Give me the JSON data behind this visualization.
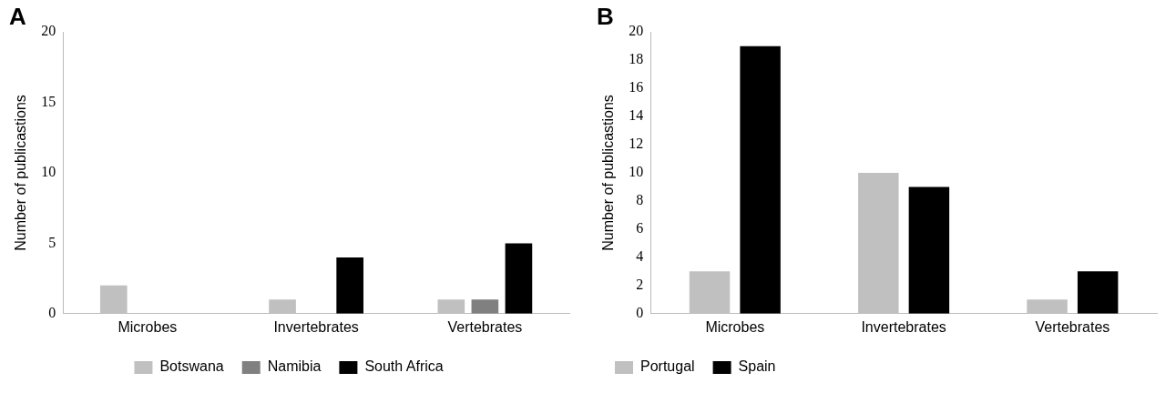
{
  "chart_data": [
    {
      "type": "bar",
      "title": "A",
      "ylabel": "Number of publicastions",
      "categories": [
        "Microbes",
        "Invertebrates",
        "Vertebrates"
      ],
      "series": [
        {
          "name": "Botswana",
          "color": "#c0c0c0",
          "values": [
            2,
            1,
            1
          ]
        },
        {
          "name": "Namibia",
          "color": "#808080",
          "values": [
            0,
            0,
            1
          ]
        },
        {
          "name": "South Africa",
          "color": "#000000",
          "values": [
            0,
            4,
            5
          ]
        }
      ],
      "ylim": [
        0,
        20
      ],
      "yticks": [
        0,
        5,
        10,
        15,
        20
      ],
      "grid": false,
      "legend": "bottom"
    },
    {
      "type": "bar",
      "title": "B",
      "ylabel": "Number of publicastions",
      "categories": [
        "Microbes",
        "Invertebrates",
        "Vertebrates"
      ],
      "series": [
        {
          "name": "Portugal",
          "color": "#c0c0c0",
          "values": [
            3,
            10,
            1
          ]
        },
        {
          "name": "Spain",
          "color": "#000000",
          "values": [
            19,
            9,
            3
          ]
        }
      ],
      "ylim": [
        0,
        20
      ],
      "yticks": [
        0,
        2,
        4,
        6,
        8,
        10,
        12,
        14,
        16,
        18,
        20
      ],
      "grid": false,
      "legend": "bottom left"
    }
  ]
}
